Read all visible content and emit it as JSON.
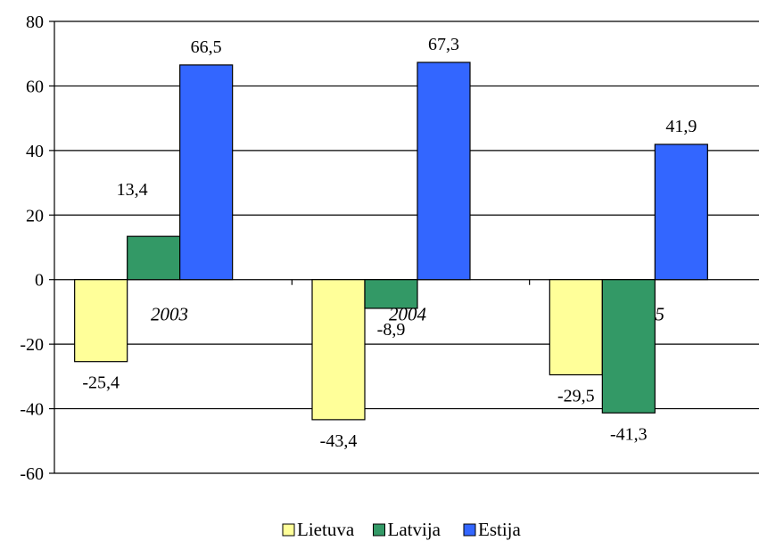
{
  "chart_data": {
    "type": "bar",
    "categories": [
      "2003",
      "2004",
      "2005"
    ],
    "series": [
      {
        "name": "Lietuva",
        "values": [
          -25.4,
          -43.4,
          -29.5
        ],
        "labels": [
          "-25,4",
          "-43,4",
          "-29,5"
        ],
        "color": "#FFFF99"
      },
      {
        "name": "Latvija",
        "values": [
          13.4,
          -8.9,
          -41.3
        ],
        "labels": [
          "13,4",
          "-8,9",
          "-41,3"
        ],
        "color": "#339966"
      },
      {
        "name": "Estija",
        "values": [
          66.5,
          67.3,
          41.9
        ],
        "labels": [
          "66,5",
          "67,3",
          "41,9"
        ],
        "color": "#3366FF"
      }
    ],
    "ylim": [
      -60,
      80
    ],
    "yticks": [
      "80",
      "60",
      "40",
      "20",
      "0",
      "-20",
      "-40",
      "-60"
    ],
    "ytick_values": [
      80,
      60,
      40,
      20,
      0,
      -20,
      -40,
      -60
    ],
    "grid": true,
    "legend_position": "bottom-center"
  }
}
